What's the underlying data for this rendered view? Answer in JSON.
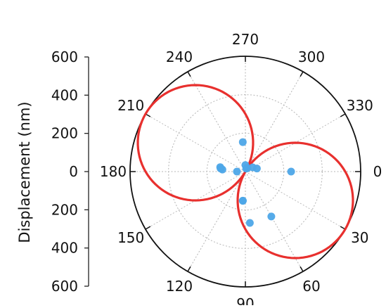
{
  "chart_data": {
    "type": "polar",
    "radial_axis": {
      "label": "Displacement (nm)",
      "tick_labels": [
        "600",
        "400",
        "200",
        "0",
        "200",
        "400",
        "600"
      ],
      "range": [
        0,
        600
      ],
      "ticks": [
        0,
        200,
        400,
        600
      ]
    },
    "angular_axis": {
      "unit": "degrees",
      "direction": "clockwise",
      "zero_location": "right",
      "ticks": [
        0,
        30,
        60,
        90,
        120,
        150,
        180,
        210,
        240,
        270,
        300,
        330
      ],
      "tick_labels": [
        "0",
        "30",
        "60",
        "90",
        "120",
        "150",
        "180",
        "210",
        "240",
        "270",
        "300",
        "330"
      ]
    },
    "grid": true,
    "series": [
      {
        "type": "line",
        "color": "#e8302e",
        "shape": "figure-eight",
        "peak_amplitude": 600,
        "peak_angles": [
          30,
          210
        ],
        "null_angles": [
          120,
          300
        ]
      },
      {
        "type": "scatter",
        "color": "#4da6e8",
        "points": [
          {
            "angle": 0,
            "r": 238
          },
          {
            "angle": 270,
            "r": 34
          },
          {
            "angle": 285,
            "r": 16
          },
          {
            "angle": 300,
            "r": 20
          },
          {
            "angle": 330,
            "r": 44
          },
          {
            "angle": 345,
            "r": 62
          },
          {
            "angle": 60,
            "r": 270
          },
          {
            "angle": 85,
            "r": 268
          },
          {
            "angle": 95,
            "r": 153
          },
          {
            "angle": 180,
            "r": 44
          },
          {
            "angle": 185,
            "r": 120
          },
          {
            "angle": 190,
            "r": 133
          },
          {
            "angle": 95,
            "r": 152
          },
          {
            "angle": 265,
            "r": 154
          },
          {
            "angle": 187,
            "r": 130
          }
        ]
      }
    ]
  }
}
